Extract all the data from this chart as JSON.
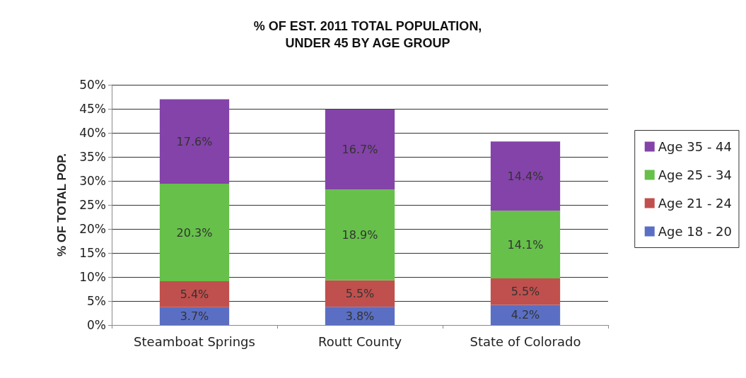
{
  "chart_data": {
    "type": "bar",
    "title": "% OF EST. 2011 TOTAL POPULATION,\nUNDER 45 BY AGE GROUP",
    "ylabel": "% OF TOTAL POP.",
    "categories": [
      "Steamboat Springs",
      "Routt County",
      "State of Colorado"
    ],
    "stacked": true,
    "series": [
      {
        "name": "Age 18 - 20",
        "color": "#5a6fc4",
        "values": [
          3.7,
          3.8,
          4.2
        ],
        "value_labels": [
          "3.7%",
          "3.8%",
          "4.2%"
        ]
      },
      {
        "name": "Age 21 - 24",
        "color": "#c0504d",
        "values": [
          5.4,
          5.5,
          5.5
        ],
        "value_labels": [
          "5.4%",
          "5.5%",
          "5.5%"
        ]
      },
      {
        "name": "Age 25 - 34",
        "color": "#66c04a",
        "values": [
          20.3,
          18.9,
          14.1
        ],
        "value_labels": [
          "20.3%",
          "18.9%",
          "14.1%"
        ]
      },
      {
        "name": "Age 35 - 44",
        "color": "#8343a8",
        "values": [
          17.6,
          16.7,
          14.4
        ],
        "value_labels": [
          "17.6%",
          "16.7%",
          "14.4%"
        ]
      }
    ],
    "ylim": [
      0,
      50
    ],
    "yticks": [
      {
        "value": 0,
        "label": "0%"
      },
      {
        "value": 5,
        "label": "5%"
      },
      {
        "value": 10,
        "label": "10%"
      },
      {
        "value": 15,
        "label": "15%"
      },
      {
        "value": 20,
        "label": "20%"
      },
      {
        "value": 25,
        "label": "25%"
      },
      {
        "value": 30,
        "label": "30%"
      },
      {
        "value": 35,
        "label": "35%"
      },
      {
        "value": 40,
        "label": "40%"
      },
      {
        "value": 45,
        "label": "45%"
      },
      {
        "value": 50,
        "label": "50%"
      }
    ],
    "grid": "y",
    "legend": "right"
  }
}
